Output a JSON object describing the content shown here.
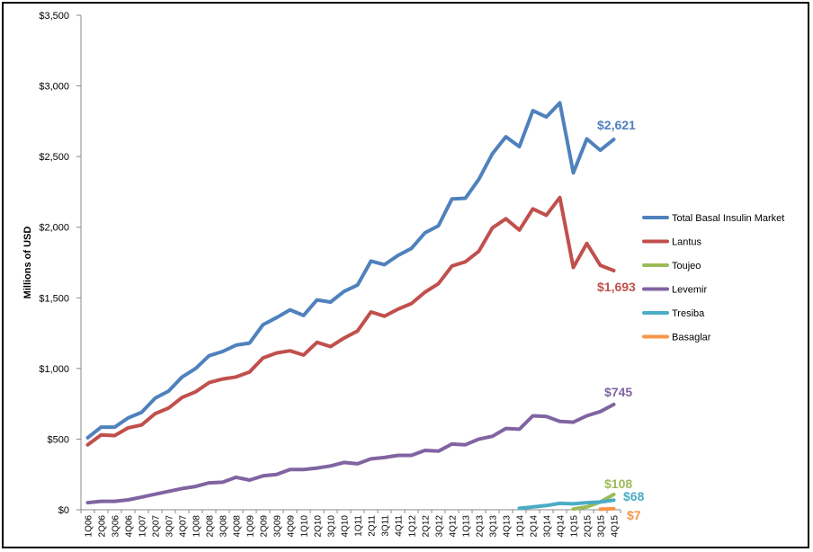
{
  "chart_data": {
    "type": "line",
    "ylabel": "Millions of USD",
    "ylim": [
      0,
      3500
    ],
    "y_ticks": [
      0,
      500,
      1000,
      1500,
      2000,
      2500,
      3000,
      3500
    ],
    "y_tick_labels": [
      "$0",
      "$500",
      "$1,000",
      "$1,500",
      "$2,000",
      "$2,500",
      "$3,000",
      "$3,500"
    ],
    "gridlines": false,
    "legend_placement": "right",
    "categories": [
      "1Q06",
      "2Q06",
      "3Q06",
      "4Q06",
      "1Q07",
      "2Q07",
      "3Q07",
      "4Q07",
      "1Q08",
      "2Q08",
      "3Q08",
      "4Q08",
      "1Q09",
      "2Q09",
      "3Q09",
      "4Q09",
      "1Q10",
      "2Q10",
      "3Q10",
      "4Q10",
      "1Q11",
      "2Q11",
      "3Q11",
      "4Q11",
      "1Q12",
      "2Q12",
      "3Q12",
      "4Q12",
      "1Q13",
      "2Q13",
      "3Q13",
      "4Q13",
      "1Q14",
      "2Q14",
      "3Q14",
      "4Q14",
      "1Q15",
      "2Q15",
      "3Q15",
      "4Q15"
    ],
    "series": [
      {
        "name": "Total Basal Insulin Market",
        "color": "#4f81bd",
        "values": [
          510,
          585,
          585,
          650,
          690,
          790,
          840,
          940,
          1000,
          1090,
          1120,
          1165,
          1180,
          1310,
          1360,
          1415,
          1375,
          1485,
          1470,
          1545,
          1590,
          1760,
          1735,
          1800,
          1850,
          1960,
          2010,
          2200,
          2205,
          2340,
          2520,
          2640,
          2570,
          2825,
          2780,
          2880,
          2385,
          2625,
          2545,
          2621
        ],
        "end_label": "$2,621"
      },
      {
        "name": "Lantus",
        "color": "#c0504d",
        "values": [
          460,
          530,
          525,
          580,
          600,
          680,
          720,
          795,
          835,
          900,
          925,
          940,
          975,
          1075,
          1110,
          1125,
          1095,
          1185,
          1155,
          1215,
          1265,
          1400,
          1370,
          1420,
          1460,
          1540,
          1600,
          1725,
          1755,
          1830,
          1995,
          2060,
          1980,
          2130,
          2085,
          2210,
          1715,
          1885,
          1730,
          1693
        ],
        "end_label": "$1,693"
      },
      {
        "name": "Toujeo",
        "color": "#9bbb59",
        "values": [
          null,
          null,
          null,
          null,
          null,
          null,
          null,
          null,
          null,
          null,
          null,
          null,
          null,
          null,
          null,
          null,
          null,
          null,
          null,
          null,
          null,
          null,
          null,
          null,
          null,
          null,
          null,
          null,
          null,
          null,
          null,
          null,
          null,
          null,
          null,
          null,
          5,
          20,
          55,
          108
        ],
        "end_label": "$108"
      },
      {
        "name": "Levemir",
        "color": "#8064a2",
        "values": [
          50,
          60,
          60,
          70,
          90,
          110,
          130,
          150,
          165,
          190,
          195,
          230,
          210,
          240,
          250,
          285,
          285,
          295,
          310,
          335,
          325,
          360,
          370,
          385,
          385,
          420,
          415,
          465,
          460,
          500,
          520,
          575,
          570,
          665,
          660,
          625,
          620,
          665,
          695,
          745
        ],
        "end_label": "$745"
      },
      {
        "name": "Tresiba",
        "color": "#4bacc6",
        "values": [
          null,
          null,
          null,
          null,
          null,
          null,
          null,
          null,
          null,
          null,
          null,
          null,
          null,
          null,
          null,
          null,
          null,
          null,
          null,
          null,
          null,
          null,
          null,
          null,
          null,
          null,
          null,
          null,
          null,
          null,
          null,
          null,
          10,
          20,
          30,
          45,
          42,
          50,
          55,
          68
        ],
        "end_label": "$68"
      },
      {
        "name": "Basaglar",
        "color": "#f79646",
        "values": [
          null,
          null,
          null,
          null,
          null,
          null,
          null,
          null,
          null,
          null,
          null,
          null,
          null,
          null,
          null,
          null,
          null,
          null,
          null,
          null,
          null,
          null,
          null,
          null,
          null,
          null,
          null,
          null,
          null,
          null,
          null,
          null,
          null,
          null,
          null,
          null,
          null,
          null,
          4,
          7
        ],
        "end_label": "$7"
      }
    ]
  }
}
